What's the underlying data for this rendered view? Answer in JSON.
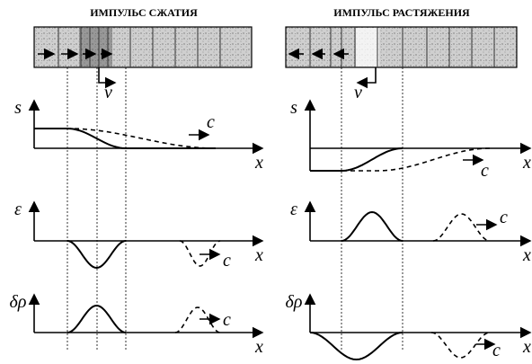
{
  "panels": [
    {
      "title": "ИМПУЛЬС СЖАТИЯ",
      "velocity_label": "v",
      "plots": [
        {
          "y_label": "s",
          "x_label": "x",
          "wave_label": "c"
        },
        {
          "y_label": "ε",
          "x_label": "x",
          "wave_label": "c"
        },
        {
          "y_label": "δρ",
          "x_label": "x",
          "wave_label": "c"
        }
      ]
    },
    {
      "title": "ИМПУЛЬС РАСТЯЖЕНИЯ",
      "velocity_label": "v",
      "plots": [
        {
          "y_label": "s",
          "x_label": "x",
          "wave_label": "c"
        },
        {
          "y_label": "ε",
          "x_label": "x",
          "wave_label": "c"
        },
        {
          "y_label": "δρ",
          "x_label": "x",
          "wave_label": "c"
        }
      ]
    }
  ]
}
